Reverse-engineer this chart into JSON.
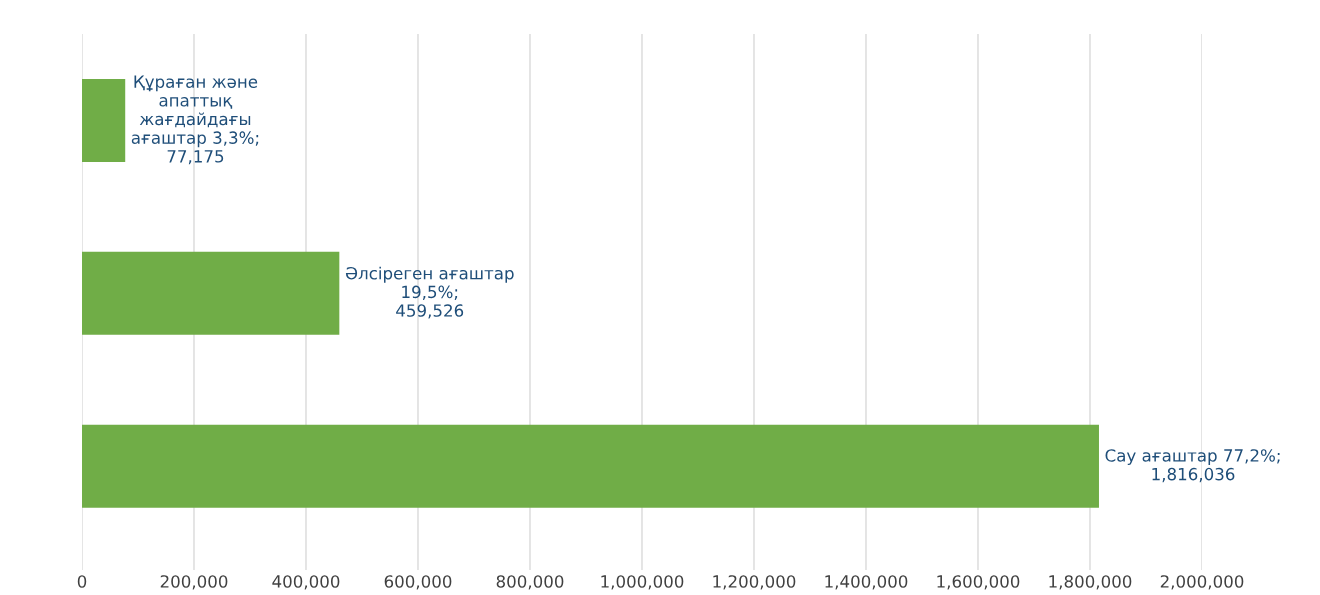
{
  "chart_data": {
    "type": "bar",
    "orientation": "horizontal",
    "categories": [
      null,
      null,
      null
    ],
    "values": [
      77175,
      459526,
      1816036
    ],
    "color": "#70ad47",
    "value_labels": [
      "Құраған және\nапаттық\nжағдайдағы\nағаштар 3,3%;\n77,175",
      "Әлсіреген ағаштар\n19,5%;\n459,526",
      "Сау ағаштар 77,2%;\n1,816,036"
    ],
    "xlim": [
      0,
      2000000
    ],
    "xticks": [
      0,
      {
        "value": 200000,
        "label": "200,000"
      },
      {
        "value": 400000,
        "label": "400,000"
      },
      {
        "value": 600000,
        "label": "600,000"
      },
      {
        "value": 800000,
        "label": "800,000"
      },
      {
        "value": 1000000,
        "label": "1,000,000"
      },
      {
        "value": 1200000,
        "label": "1,200,000"
      },
      {
        "value": 1400000,
        "label": "1,400,000"
      },
      {
        "value": 1600000,
        "label": "1,600,000"
      },
      {
        "value": 1800000,
        "label": "1,800,000"
      },
      {
        "value": 2000000,
        "label": "2,000,000"
      }
    ],
    "grid": "x",
    "tick_labels": "x"
  }
}
